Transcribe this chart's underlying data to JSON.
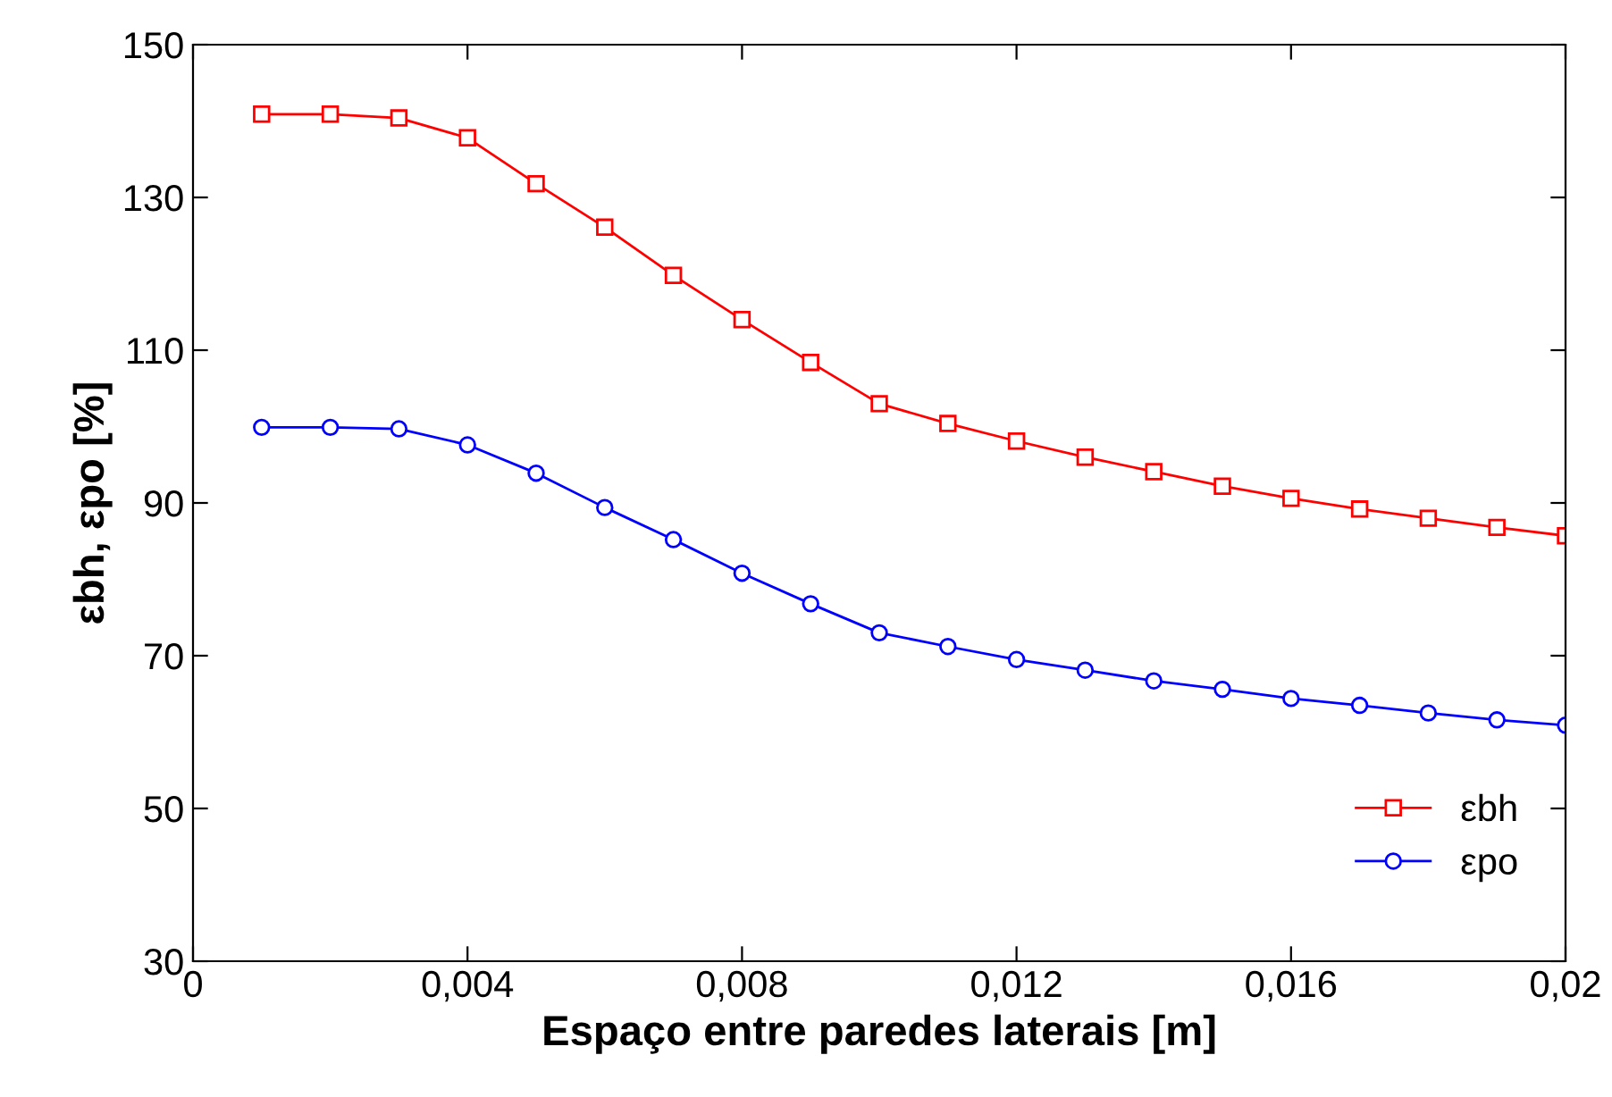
{
  "chart_data": {
    "type": "line",
    "xlabel": "Espaço entre paredes laterais [m]",
    "ylabel": "εbh, εpo [%]",
    "x": [
      0.001,
      0.002,
      0.003,
      0.004,
      0.005,
      0.006,
      0.007,
      0.008,
      0.009,
      0.01,
      0.011,
      0.012,
      0.013,
      0.014,
      0.015,
      0.016,
      0.017,
      0.018,
      0.019,
      0.02
    ],
    "series": [
      {
        "name": "εbh",
        "color": "#ff0000",
        "marker": "square",
        "values": [
          140.9,
          140.9,
          140.4,
          137.8,
          131.8,
          126.1,
          119.8,
          114.0,
          108.4,
          103.0,
          100.4,
          98.1,
          96.0,
          94.1,
          92.2,
          90.6,
          89.2,
          88.0,
          86.8,
          85.7
        ]
      },
      {
        "name": "εpo",
        "color": "#0000ff",
        "marker": "circle",
        "values": [
          99.9,
          99.9,
          99.7,
          97.6,
          93.9,
          89.4,
          85.2,
          80.8,
          76.8,
          73.0,
          71.2,
          69.5,
          68.1,
          66.7,
          65.6,
          64.4,
          63.5,
          62.5,
          61.6,
          60.9
        ]
      }
    ],
    "xlim": [
      0,
      0.02
    ],
    "xticks": [
      0,
      {
        "value": 0.004,
        "label": "0,004"
      },
      {
        "value": 0.008,
        "label": "0,008"
      },
      {
        "value": 0.012,
        "label": "0,012"
      },
      {
        "value": 0.016,
        "label": "0,016"
      },
      {
        "value": 0.02,
        "label": "0,02"
      }
    ],
    "ylim": [
      30,
      150
    ],
    "yticks": [
      30,
      50,
      70,
      90,
      110,
      130,
      150
    ],
    "grid": false,
    "legend": "bottom right",
    "line_style": "solid"
  }
}
